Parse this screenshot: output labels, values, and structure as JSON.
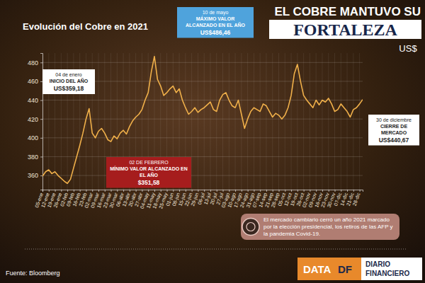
{
  "header": {
    "kicker": "EL COBRE MANTUVO SU",
    "headline": "FORTALEZA"
  },
  "chart_data": {
    "type": "line",
    "title": "Evolución del Cobre en 2021",
    "y_label": "US$",
    "categories": [
      "05-ene",
      null,
      "12-ene",
      null,
      "19-ene",
      null,
      "26-ene",
      null,
      "02-feb",
      null,
      "09-feb",
      null,
      "16-feb",
      null,
      "23-feb",
      null,
      "02-mar",
      null,
      "09-mar",
      null,
      "16-mar",
      null,
      "23-mar",
      null,
      "30-mar",
      null,
      "06-abr",
      null,
      "13-abr",
      null,
      "20-abr",
      null,
      "27-abr",
      null,
      "04-may",
      null,
      "11-may",
      null,
      "18-may",
      null,
      "25-may",
      null,
      "01-jun",
      null,
      "08-jun",
      null,
      "15-jun",
      null,
      "22-jun",
      null,
      "29-jun",
      null,
      "06-jul",
      null,
      "13-jul",
      null,
      "20-jul",
      null,
      "27-jul",
      null,
      "03-ago",
      null,
      "10-ago",
      null,
      "17-ago",
      null,
      "24-ago",
      null,
      "31-ago",
      null,
      "07-sep",
      null,
      "14-sep",
      null,
      "21-sep",
      null,
      "28-sep",
      null,
      "05-oct",
      null,
      "12-oct",
      null,
      "19-oct",
      null,
      "26-oct",
      null,
      "02-nov",
      null,
      "09-nov",
      null,
      "16-nov",
      null,
      "23-nov",
      null,
      "30-nov",
      null,
      "07-dic",
      null,
      "14-dic",
      null,
      "21-dic",
      null,
      "28-dic",
      null
    ],
    "values": [
      359.18,
      364,
      366,
      362,
      364,
      360,
      357,
      354,
      351.58,
      356,
      368,
      380,
      392,
      405,
      420,
      431,
      405,
      400,
      407,
      410,
      405,
      398,
      396,
      402,
      399,
      405,
      408,
      404,
      412,
      418,
      422,
      425,
      430,
      440,
      448,
      470,
      486.46,
      462,
      455,
      445,
      448,
      452,
      455,
      448,
      452,
      440,
      432,
      425,
      428,
      432,
      427,
      430,
      432,
      435,
      438,
      430,
      428,
      440,
      446,
      448,
      440,
      434,
      432,
      440,
      425,
      410,
      420,
      428,
      432,
      430,
      428,
      436,
      434,
      428,
      422,
      426,
      424,
      420,
      424,
      432,
      445,
      468,
      478,
      460,
      445,
      440,
      436,
      432,
      440,
      435,
      440,
      438,
      442,
      436,
      428,
      430,
      436,
      432,
      428,
      422,
      430,
      432,
      436,
      440.67
    ],
    "color": "#f0b04a",
    "ylim": [
      345,
      490
    ],
    "yticks": [
      360,
      380,
      400,
      420,
      440,
      460,
      480
    ],
    "grid": true,
    "annotations": [
      {
        "date": "04 de enero",
        "label": "INICIO DEL AÑO",
        "value": "US$359,18"
      },
      {
        "date": "10 de mayo",
        "label": "MÁXIMO VALOR ALCANZADO EN EL AÑO",
        "value": "US$486,46"
      },
      {
        "date": "02 DE FEBRERO",
        "label": "MÍNIMO VALOR ALCANZADO EN EL AÑO",
        "value": "$351,58"
      },
      {
        "date": "30 de diciembre",
        "label": "CIERRE DE MERCADO",
        "value": "US$440,67"
      }
    ]
  },
  "note": "El mercado cambiario cerró un año 2021 marcado por la elección presidencial, los retiros de las AFP y la pandemia Covid-19.",
  "source": "Fuente: Bloomberg",
  "branding": {
    "data": "DATA",
    "df": "DF",
    "paper": [
      "DIARIO",
      "FINANCIERO"
    ]
  }
}
